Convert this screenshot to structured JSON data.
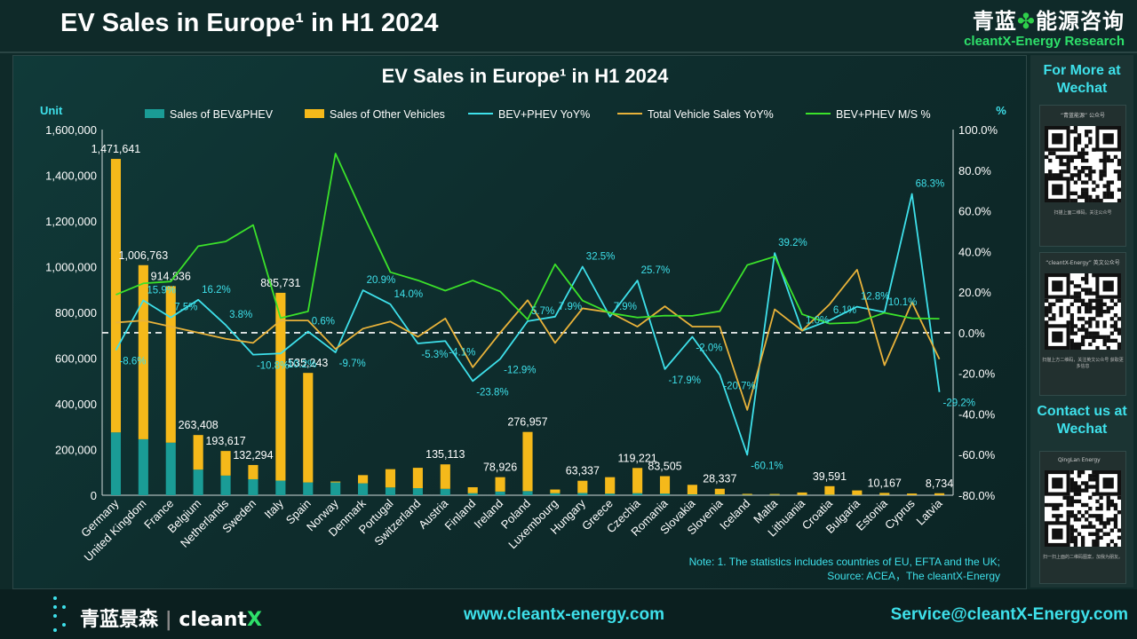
{
  "header": {
    "title": "EV Sales in Europe¹ in H1 2024",
    "logo_cn_left": "青蓝",
    "logo_cn_right": "能源咨询",
    "logo_en": "cleantX-Energy Research"
  },
  "side": {
    "follow_title": "For More at Wechat",
    "qr1_caption": "“青蓝能源” 公众号",
    "qr1_sub": "扫描上面二维码，关注公众号",
    "qr2_caption": "“cleantX-Energy” 英文公众号",
    "qr2_sub": "扫描上方二维码，关注英文公众号 获取更多信息",
    "contact_title": "Contact us at Wechat",
    "qr3_caption": "QingLan Energy",
    "qr3_sub": "扫一扫上面的二维码图案，加我为朋友。"
  },
  "footer": {
    "logo_cn": "青蓝景森",
    "logo_en_a": "cleant",
    "logo_en_b": "X",
    "url": "www.cleantx-energy.com",
    "email": "Service@cleantX-Energy.com"
  },
  "colors": {
    "bev_bar": "#1a9c96",
    "other_bar": "#f5b91a",
    "bev_yoy": "#3ee0ea",
    "total_yoy": "#e8b23a",
    "ms": "#3be22a"
  },
  "chart_data": {
    "type": "bar",
    "title": "EV Sales in Europe¹ in H1 2024",
    "ylabel": "Unit",
    "y2label": "%",
    "ylim": [
      0,
      1600000
    ],
    "y2lim": [
      -80,
      100
    ],
    "yticks": [
      "0",
      "200,000",
      "400,000",
      "600,000",
      "800,000",
      "1,000,000",
      "1,200,000",
      "1,400,000",
      "1,600,000"
    ],
    "y2ticks": [
      "-80.0%",
      "-60.0%",
      "-40.0%",
      "-20.0%",
      "0.0%",
      "20.0%",
      "40.0%",
      "60.0%",
      "80.0%",
      "100.0%"
    ],
    "grid": false,
    "legend_position": "top",
    "categories": [
      "Germany",
      "United Kingdom",
      "France",
      "Belgium",
      "Netherlands",
      "Sweden",
      "Italy",
      "Spain",
      "Norway",
      "Denmark",
      "Portugal",
      "Switzerland",
      "Austria",
      "Finland",
      "Ireland",
      "Poland",
      "Luxembourg",
      "Hungary",
      "Greece",
      "Czechia",
      "Romania",
      "Slovakia",
      "Slovenia",
      "Iceland",
      "Malta",
      "Lithuania",
      "Croatia",
      "Bulgaria",
      "Estonia",
      "Cyprus",
      "Latvia"
    ],
    "series": [
      {
        "name": "Sales of BEV&PHEV",
        "type": "bar",
        "values": [
          275000,
          245000,
          230000,
          112000,
          86000,
          70000,
          64000,
          56000,
          56000,
          52000,
          34000,
          31000,
          28000,
          9000,
          16000,
          18000,
          9000,
          10000,
          7000,
          9000,
          7000,
          3500,
          3000,
          1500,
          1500,
          1000,
          1800,
          1000,
          1000,
          500,
          600
        ]
      },
      {
        "name": "Sales of Other Vehicles",
        "type": "bar",
        "values": [
          1196641,
          761763,
          684836,
          151408,
          107617,
          62294,
          821731,
          479243,
          4000,
          36000,
          80000,
          89000,
          107113,
          26000,
          62926,
          258957,
          16000,
          53337,
          72000,
          110221,
          76505,
          42000,
          25337,
          4500,
          4000,
          11000,
          37791,
          20000,
          9167,
          7000,
          8134
        ]
      },
      {
        "name": "BEV+PHEV YoY%",
        "type": "line",
        "values": [
          -8.6,
          15.9,
          7.5,
          16.2,
          3.8,
          -10.8,
          -10.2,
          0.6,
          -9.7,
          20.9,
          14.0,
          -5.3,
          -4.1,
          -23.8,
          -12.9,
          5.7,
          7.9,
          32.5,
          7.9,
          25.7,
          -17.9,
          -2.0,
          -20.7,
          -60.1,
          39.2,
          1.0,
          6.1,
          12.8,
          10.1,
          68.3,
          -29.2
        ]
      },
      {
        "name": "Total Vehicle Sales YoY%",
        "type": "line",
        "values": [
          5.0,
          6.0,
          3.0,
          0.0,
          -3.0,
          -5.0,
          6.0,
          6.0,
          -8.0,
          2.0,
          5.5,
          -2.0,
          7.0,
          -17.0,
          0.0,
          16.0,
          -5.0,
          12.0,
          10.0,
          3.0,
          13.0,
          3.0,
          3.0,
          -38.0,
          11.5,
          1.0,
          14.0,
          31.0,
          -16.0,
          15.0,
          -13.0
        ]
      },
      {
        "name": "BEV+PHEV M/S %",
        "type": "line",
        "values": [
          18.7,
          24.3,
          25.2,
          42.6,
          44.9,
          53.0,
          7.2,
          10.5,
          88.2,
          58.5,
          29.8,
          25.8,
          20.7,
          25.7,
          20.3,
          6.5,
          33.7,
          15.8,
          9.7,
          7.5,
          8.4,
          8.3,
          10.6,
          33.3,
          37.5,
          9.1,
          4.5,
          5.0,
          9.8,
          7.1,
          6.9
        ]
      }
    ],
    "bar_total_labels": [
      {
        "index": 0,
        "text": "1,471,641"
      },
      {
        "index": 1,
        "text": "1,006,763"
      },
      {
        "index": 2,
        "text": "914,836"
      },
      {
        "index": 3,
        "text": "263,408"
      },
      {
        "index": 4,
        "text": "193,617"
      },
      {
        "index": 5,
        "text": "132,294"
      },
      {
        "index": 6,
        "text": "885,731"
      },
      {
        "index": 7,
        "text": "535,243"
      },
      {
        "index": 12,
        "text": "135,113"
      },
      {
        "index": 14,
        "text": "78,926"
      },
      {
        "index": 15,
        "text": "276,957"
      },
      {
        "index": 17,
        "text": "63,337"
      },
      {
        "index": 19,
        "text": "119,221"
      },
      {
        "index": 20,
        "text": "83,505"
      },
      {
        "index": 22,
        "text": "28,337"
      },
      {
        "index": 26,
        "text": "39,591"
      },
      {
        "index": 28,
        "text": "10,167"
      },
      {
        "index": 30,
        "text": "8,734"
      }
    ],
    "yoy_labels": [
      {
        "index": 0,
        "text": "-8.6%"
      },
      {
        "index": 1,
        "text": "15.9%"
      },
      {
        "index": 2,
        "text": "7.5%"
      },
      {
        "index": 3,
        "text": "16.2%"
      },
      {
        "index": 4,
        "text": "3.8%"
      },
      {
        "index": 5,
        "text": "-10.8%"
      },
      {
        "index": 6,
        "text": "-10.2%"
      },
      {
        "index": 7,
        "text": "0.6%"
      },
      {
        "index": 8,
        "text": "-9.7%"
      },
      {
        "index": 9,
        "text": "20.9%"
      },
      {
        "index": 10,
        "text": "14.0%"
      },
      {
        "index": 11,
        "text": "-5.3%"
      },
      {
        "index": 12,
        "text": "-4.1%"
      },
      {
        "index": 13,
        "text": "-23.8%"
      },
      {
        "index": 14,
        "text": "-12.9%"
      },
      {
        "index": 15,
        "text": "5.7%"
      },
      {
        "index": 16,
        "text": "7.9%"
      },
      {
        "index": 17,
        "text": "32.5%"
      },
      {
        "index": 18,
        "text": "7.9%"
      },
      {
        "index": 19,
        "text": "25.7%"
      },
      {
        "index": 20,
        "text": "-17.9%"
      },
      {
        "index": 21,
        "text": "-2.0%"
      },
      {
        "index": 22,
        "text": "-20.7%"
      },
      {
        "index": 23,
        "text": "-60.1%"
      },
      {
        "index": 24,
        "text": "39.2%"
      },
      {
        "index": 25,
        "text": "1.0%"
      },
      {
        "index": 26,
        "text": "6.1%"
      },
      {
        "index": 27,
        "text": "12.8%"
      },
      {
        "index": 28,
        "text": "10.1%"
      },
      {
        "index": 29,
        "text": "68.3%"
      },
      {
        "index": 30,
        "text": "-29.2%"
      }
    ],
    "note_line1": "Note: 1. The statistics includes countries of EU, EFTA and the UK;",
    "note_line2": "Source: ACEA，The cleantX-Energy"
  }
}
